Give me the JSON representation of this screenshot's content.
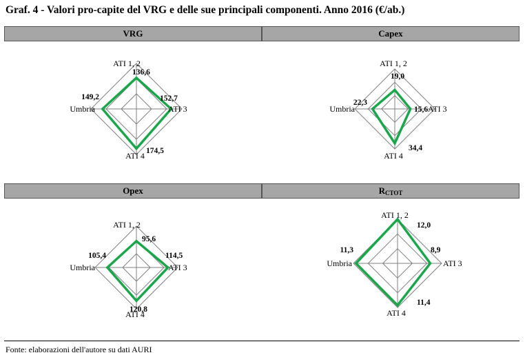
{
  "title": "Graf. 4 - Valori pro-capite del VRG e delle sue principali componenti. Anno 2016 (€/ab.)",
  "source": "Fonte: elaborazioni dell'autore su dati AURI",
  "colors": {
    "series": "#1aa64a",
    "grid": "#808080",
    "header_bg": "#a6a6a6"
  },
  "chart_data": [
    {
      "type": "radar",
      "title": "VRG",
      "categories": [
        "ATI 1, 2",
        "ATI 3",
        "ATI 4",
        "Umbria"
      ],
      "values": [
        136.6,
        152.7,
        174.5,
        149.2
      ],
      "value_labels": [
        "136,6",
        "152,7",
        "174,5",
        "149,2"
      ],
      "rmax": 200,
      "rings": 3
    },
    {
      "type": "radar",
      "title": "Capex",
      "categories": [
        "ATI 1, 2",
        "ATI 3",
        "ATI 4",
        "Umbria"
      ],
      "values": [
        19.0,
        15.6,
        34.4,
        22.3
      ],
      "value_labels": [
        "19,0",
        "15,6",
        "34,4",
        "22,3"
      ],
      "rmax": 40,
      "rings": 3
    },
    {
      "type": "radar",
      "title": "Opex",
      "categories": [
        "ATI 1, 2",
        "ATI 3",
        "ATI 4",
        "Umbria"
      ],
      "values": [
        95.6,
        114.5,
        120.8,
        105.4
      ],
      "value_labels": [
        "95,6",
        "114,5",
        "120,8",
        "105,4"
      ],
      "rmax": 150,
      "rings": 3
    },
    {
      "type": "radar",
      "title_main": "R",
      "title_sub": "CTOT",
      "categories": [
        "ATI 1, 2",
        "ATI 3",
        "ATI 4",
        "Umbria"
      ],
      "values": [
        12.0,
        8.9,
        11.4,
        11.3
      ],
      "value_labels": [
        "12,0",
        "8,9",
        "11,4",
        "11,3"
      ],
      "rmax": 12,
      "rings": 3
    }
  ]
}
